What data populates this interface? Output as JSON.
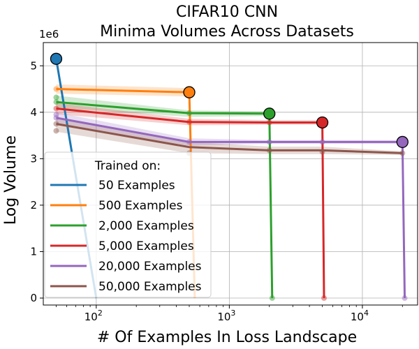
{
  "chart_data": {
    "type": "line",
    "title": "CIFAR10 CNN",
    "subtitle": "Minima Volumes Across Datasets",
    "xlabel": "# Of Examples In Loss Landscape",
    "ylabel": "Log Volume",
    "xscale": "log",
    "xlim": [
      40,
      26000
    ],
    "ylim": [
      -0.15,
      5.5
    ],
    "y_offset_label": "1e6",
    "x_ticks": [
      {
        "value": 100,
        "label": "10",
        "exp": "2"
      },
      {
        "value": 1000,
        "label": "10",
        "exp": "3"
      },
      {
        "value": 10000,
        "label": "10",
        "exp": "4"
      }
    ],
    "y_ticks": [
      0,
      1,
      2,
      3,
      4,
      5
    ],
    "grid": true,
    "legend": {
      "title": "Trained on:",
      "placement": "lower-left",
      "entries": [
        "50 Examples",
        "500 Examples",
        "2,000 Examples",
        "5,000 Examples",
        "20,000 Examples",
        "50,000 Examples"
      ]
    },
    "series": [
      {
        "name": "50 Examples",
        "color": "#1f77b4",
        "x": [
          50,
          100
        ],
        "y": [
          5.15,
          0.0
        ],
        "band": [
          [
            5.27,
            5.03
          ],
          [
            0.05,
            -0.05
          ]
        ],
        "faint_points": [],
        "highlight": {
          "x": 50,
          "y": 5.15
        }
      },
      {
        "name": "500 Examples",
        "color": "#ff7f0e",
        "x": [
          50,
          500,
          550
        ],
        "y": [
          4.5,
          4.43,
          0.0
        ],
        "band": [
          [
            4.6,
            4.4
          ],
          [
            4.52,
            4.34
          ],
          [
            0.05,
            -0.05
          ]
        ],
        "faint_points": [
          {
            "x": 50,
            "y": 4.5
          }
        ],
        "highlight": {
          "x": 500,
          "y": 4.43
        }
      },
      {
        "name": "2,000 Examples",
        "color": "#2ca02c",
        "x": [
          50,
          500,
          2000,
          2100
        ],
        "y": [
          4.22,
          3.98,
          3.97,
          0.0
        ],
        "band": [
          [
            4.36,
            4.1
          ],
          [
            4.04,
            3.9
          ],
          [
            4.02,
            3.92
          ],
          [
            0.05,
            -0.05
          ]
        ],
        "faint_points": [
          {
            "x": 50,
            "y": 4.32
          },
          {
            "x": 50,
            "y": 4.22
          },
          {
            "x": 500,
            "y": 3.98
          },
          {
            "x": 2100,
            "y": 0.0
          }
        ],
        "highlight": {
          "x": 2000,
          "y": 3.97
        }
      },
      {
        "name": "5,000 Examples",
        "color": "#d62728",
        "x": [
          50,
          500,
          2000,
          5000,
          5150
        ],
        "y": [
          4.08,
          3.79,
          3.78,
          3.78,
          0.0
        ],
        "band": [
          [
            4.2,
            3.96
          ],
          [
            3.86,
            3.72
          ],
          [
            3.83,
            3.73
          ],
          [
            3.83,
            3.73
          ],
          [
            0.05,
            -0.05
          ]
        ],
        "faint_points": [
          {
            "x": 50,
            "y": 4.08
          },
          {
            "x": 500,
            "y": 3.79
          },
          {
            "x": 2000,
            "y": 3.78
          },
          {
            "x": 5150,
            "y": 0.0
          }
        ],
        "highlight": {
          "x": 5000,
          "y": 3.78
        }
      },
      {
        "name": "20,000 Examples",
        "color": "#9467bd",
        "x": [
          50,
          500,
          2000,
          5000,
          20000,
          20800
        ],
        "y": [
          3.88,
          3.36,
          3.36,
          3.36,
          3.36,
          0.0
        ],
        "band": [
          [
            4.0,
            3.76
          ],
          [
            3.44,
            3.28
          ],
          [
            3.4,
            3.32
          ],
          [
            3.4,
            3.32
          ],
          [
            3.4,
            3.32
          ],
          [
            0.05,
            -0.05
          ]
        ],
        "faint_points": [
          {
            "x": 50,
            "y": 3.95
          },
          {
            "x": 50,
            "y": 3.88
          },
          {
            "x": 500,
            "y": 3.36
          },
          {
            "x": 2000,
            "y": 3.36
          },
          {
            "x": 5000,
            "y": 3.36
          },
          {
            "x": 20800,
            "y": 0.0
          }
        ],
        "highlight": {
          "x": 20000,
          "y": 3.36
        }
      },
      {
        "name": "50,000 Examples",
        "color": "#8c564b",
        "x": [
          50,
          500,
          2000,
          5000,
          20000
        ],
        "y": [
          3.75,
          3.25,
          3.18,
          3.18,
          3.12
        ],
        "band": [
          [
            3.9,
            3.58
          ],
          [
            3.36,
            3.12
          ],
          [
            3.26,
            3.1
          ],
          [
            3.26,
            3.1
          ],
          [
            3.16,
            3.08
          ]
        ],
        "faint_points": [
          {
            "x": 50,
            "y": 3.6
          },
          {
            "x": 50,
            "y": 3.75
          },
          {
            "x": 500,
            "y": 3.12
          },
          {
            "x": 2000,
            "y": 3.18
          },
          {
            "x": 5000,
            "y": 3.15
          },
          {
            "x": 20000,
            "y": 3.12
          }
        ],
        "highlight": null
      }
    ]
  }
}
